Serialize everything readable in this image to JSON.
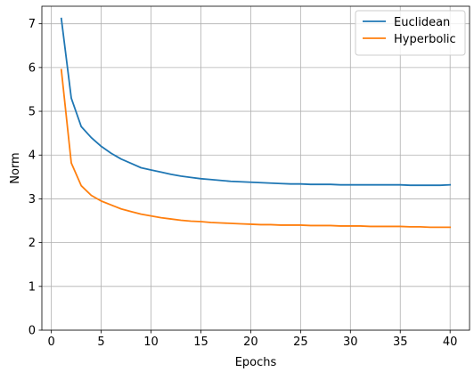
{
  "chart_data": {
    "type": "line",
    "title": "",
    "xlabel": "Epochs",
    "ylabel": "Norm",
    "xlim": [
      -0.95,
      41.95
    ],
    "ylim": [
      0,
      7.4
    ],
    "xticks": [
      0,
      5,
      10,
      15,
      20,
      25,
      30,
      35,
      40
    ],
    "yticks": [
      0,
      1,
      2,
      3,
      4,
      5,
      6,
      7
    ],
    "grid": true,
    "legend_position": "top-right",
    "x": [
      1,
      2,
      3,
      4,
      5,
      6,
      7,
      8,
      9,
      10,
      11,
      12,
      13,
      14,
      15,
      16,
      17,
      18,
      19,
      20,
      21,
      22,
      23,
      24,
      25,
      26,
      27,
      28,
      29,
      30,
      31,
      32,
      33,
      34,
      35,
      36,
      37,
      38,
      39,
      40
    ],
    "series": [
      {
        "name": "Euclidean",
        "color": "#1f77b4",
        "values": [
          7.12,
          5.3,
          4.65,
          4.4,
          4.2,
          4.04,
          3.91,
          3.81,
          3.71,
          3.66,
          3.61,
          3.56,
          3.52,
          3.49,
          3.46,
          3.44,
          3.42,
          3.4,
          3.39,
          3.38,
          3.37,
          3.36,
          3.35,
          3.34,
          3.34,
          3.33,
          3.33,
          3.33,
          3.32,
          3.32,
          3.32,
          3.32,
          3.32,
          3.32,
          3.32,
          3.31,
          3.31,
          3.31,
          3.31,
          3.32
        ]
      },
      {
        "name": "Hyperbolic",
        "color": "#ff7f0e",
        "values": [
          5.95,
          3.82,
          3.3,
          3.08,
          2.95,
          2.86,
          2.77,
          2.71,
          2.65,
          2.61,
          2.57,
          2.54,
          2.51,
          2.49,
          2.48,
          2.46,
          2.45,
          2.44,
          2.43,
          2.42,
          2.41,
          2.41,
          2.4,
          2.4,
          2.4,
          2.39,
          2.39,
          2.39,
          2.38,
          2.38,
          2.38,
          2.37,
          2.37,
          2.37,
          2.37,
          2.36,
          2.36,
          2.35,
          2.35,
          2.35
        ]
      }
    ]
  }
}
